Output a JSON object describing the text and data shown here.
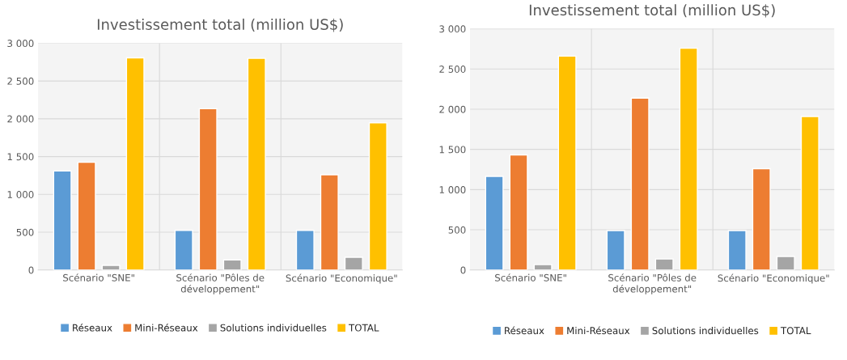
{
  "chart_data": [
    {
      "type": "bar",
      "title": "Investissement total (million US$)",
      "categories": [
        "Scénario \"SNE\"",
        "Scénario \"Pôles de développement\"",
        "Scénario \"Economique\""
      ],
      "series": [
        {
          "name": "Réseaux",
          "color": "#5b9bd5",
          "values": [
            1310,
            524,
            524
          ]
        },
        {
          "name": "Mini-Réseaux",
          "color": "#ed7d31",
          "values": [
            1425,
            2133,
            1260
          ]
        },
        {
          "name": "Solutions individuelles",
          "color": "#a5a5a5",
          "values": [
            62,
            134,
            168
          ]
        },
        {
          "name": "TOTAL",
          "color": "#ffc000",
          "values": [
            2806,
            2800,
            1946
          ]
        }
      ],
      "ylim": [
        0,
        3000
      ],
      "yticks": [
        0,
        500,
        {
          "value": 1000,
          "label": "1 000"
        },
        {
          "value": 1500,
          "label": "1 500"
        },
        {
          "value": 2000,
          "label": "2 000"
        },
        {
          "value": 2500,
          "label": "2 500"
        },
        {
          "value": 3000,
          "label": "3 000"
        }
      ],
      "grid": true,
      "legend": "bottom"
    },
    {
      "type": "bar",
      "title": "Investissement total (million US$)",
      "categories": [
        "Scénario \"SNE\"",
        "Scénario \"Pôles de développement\"",
        "Scénario \"Economique\""
      ],
      "series": [
        {
          "name": "Réseaux",
          "color": "#5b9bd5",
          "values": [
            1164,
            490,
            490
          ]
        },
        {
          "name": "Mini-Réseaux",
          "color": "#ed7d31",
          "values": [
            1432,
            2138,
            1260
          ]
        },
        {
          "name": "Solutions individuelles",
          "color": "#a5a5a5",
          "values": [
            67,
            137,
            169
          ]
        },
        {
          "name": "TOTAL",
          "color": "#ffc000",
          "values": [
            2660,
            2758,
            1909
          ]
        }
      ],
      "ylim": [
        0,
        3000
      ],
      "yticks": [
        0,
        500,
        {
          "value": 1000,
          "label": "1 000"
        },
        {
          "value": 1500,
          "label": "1 500"
        },
        {
          "value": 2000,
          "label": "2 000"
        },
        {
          "value": 2500,
          "label": "2 500"
        },
        {
          "value": 3000,
          "label": "3 000"
        }
      ],
      "grid": true,
      "legend": "bottom"
    }
  ]
}
